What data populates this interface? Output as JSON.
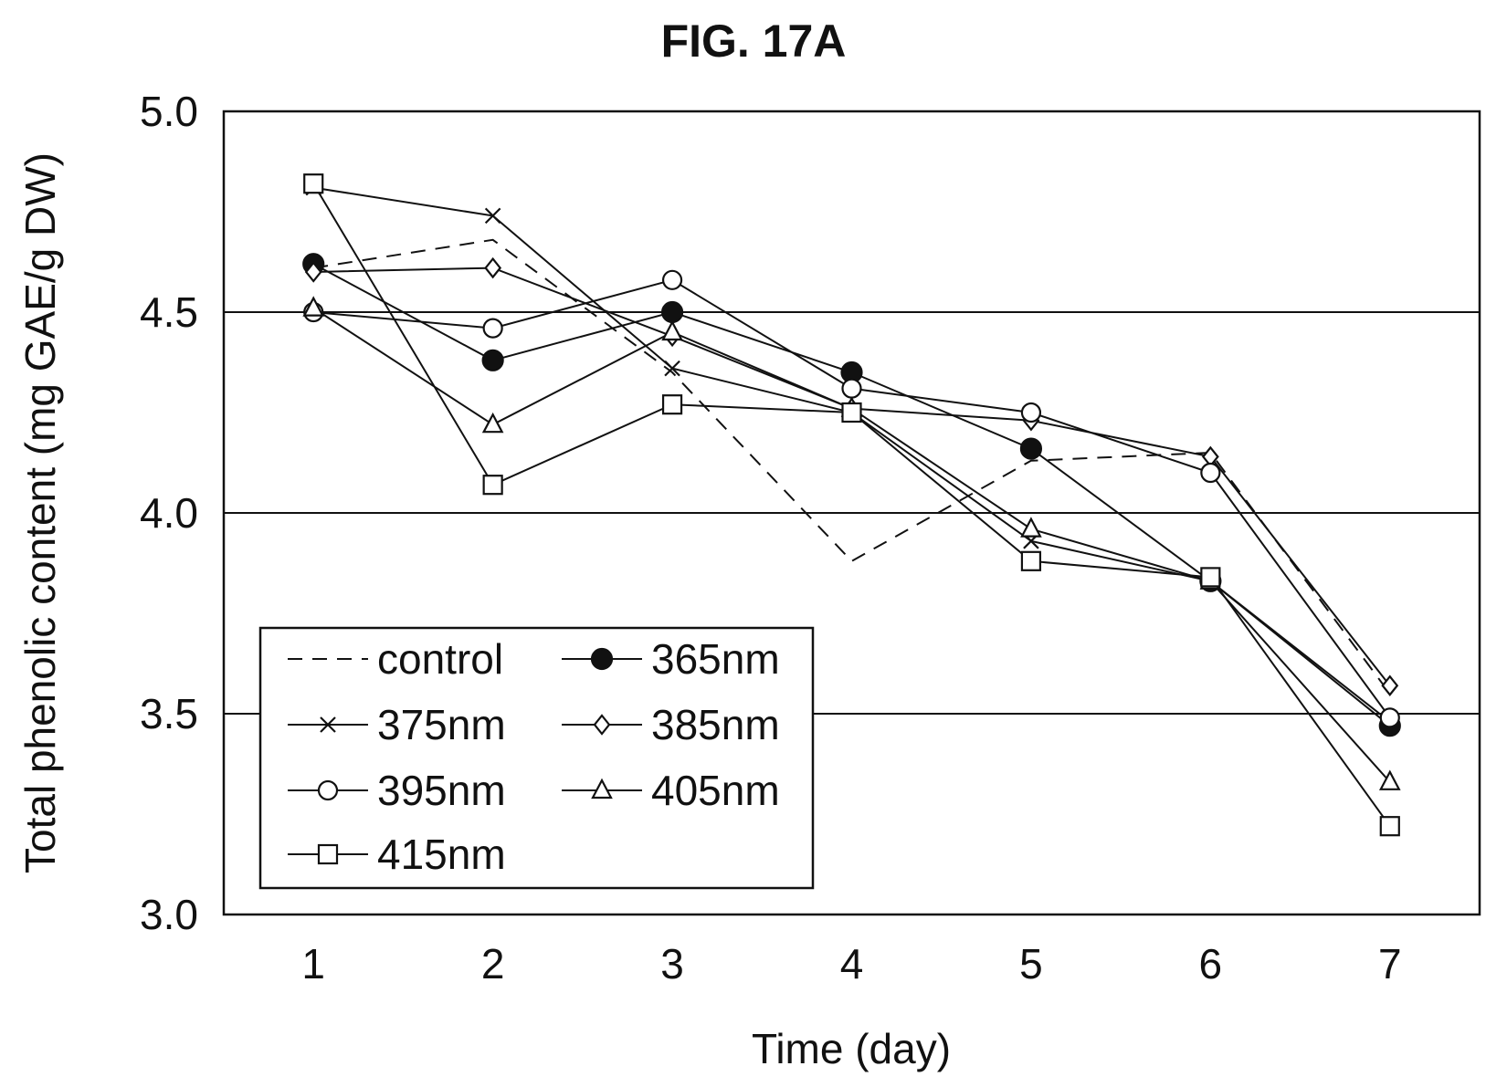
{
  "figure": {
    "title": "FIG. 17A"
  },
  "chart_data": {
    "type": "line",
    "title": "FIG. 17A",
    "xlabel": "Time (day)",
    "ylabel": "Total phenolic content (mg GAE/g DW)",
    "x": [
      1,
      2,
      3,
      4,
      5,
      6,
      7
    ],
    "xlim": [
      0.5,
      7.5
    ],
    "ylim": [
      3.0,
      5.0
    ],
    "y_ticks": [
      "3.0",
      "3.5",
      "4.0",
      "4.5",
      "5.0"
    ],
    "x_ticks": [
      "1",
      "2",
      "3",
      "4",
      "5",
      "6",
      "7"
    ],
    "grid": "horizontal",
    "legend_position": "bottom-left",
    "series": [
      {
        "name": "control",
        "values": [
          4.61,
          4.68,
          4.35,
          3.88,
          4.13,
          4.15,
          3.55
        ],
        "marker": "none",
        "dash": true
      },
      {
        "name": "365nm",
        "values": [
          4.62,
          4.38,
          4.5,
          4.35,
          4.16,
          3.83,
          3.47
        ],
        "marker": "filled-circle",
        "dash": false
      },
      {
        "name": "375nm",
        "values": [
          4.81,
          4.74,
          4.36,
          4.25,
          3.93,
          3.83,
          3.48
        ],
        "marker": "x",
        "dash": false
      },
      {
        "name": "385nm",
        "values": [
          4.6,
          4.61,
          4.44,
          4.26,
          4.23,
          4.14,
          3.57
        ],
        "marker": "diamond",
        "dash": false
      },
      {
        "name": "395nm",
        "values": [
          4.5,
          4.46,
          4.58,
          4.31,
          4.25,
          4.1,
          3.49
        ],
        "marker": "open-circle",
        "dash": false
      },
      {
        "name": "405nm",
        "values": [
          4.51,
          4.22,
          4.45,
          4.26,
          3.96,
          3.83,
          3.33
        ],
        "marker": "triangle",
        "dash": false
      },
      {
        "name": "415nm",
        "values": [
          4.82,
          4.07,
          4.27,
          4.25,
          3.88,
          3.84,
          3.22
        ],
        "marker": "square",
        "dash": false
      }
    ]
  }
}
